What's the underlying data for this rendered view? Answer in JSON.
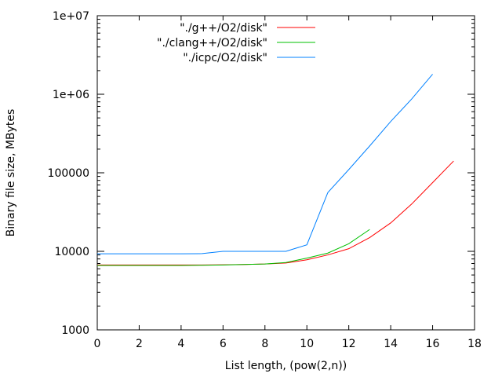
{
  "chart_data": {
    "type": "line",
    "title": "",
    "xlabel": "List length, (pow(2,n))",
    "ylabel": "Binary file size, MBytes",
    "xlim": [
      0,
      18
    ],
    "ylim": [
      1000,
      10000000
    ],
    "yscale": "log",
    "xticks": [
      0,
      2,
      4,
      6,
      8,
      10,
      12,
      14,
      16,
      18
    ],
    "yticks": [
      1000,
      10000,
      100000,
      1000000,
      10000000
    ],
    "ytick_labels": [
      "1000",
      "10000",
      "100000",
      "1e+06",
      "1e+07"
    ],
    "legend_position": "top-center",
    "series": [
      {
        "name": "\"./g++/O2/disk\"",
        "color": "#ff0000",
        "x": [
          0,
          1,
          2,
          3,
          4,
          5,
          6,
          7,
          8,
          9,
          10,
          11,
          12,
          13,
          14,
          15,
          16,
          17
        ],
        "y": [
          6700,
          6700,
          6700,
          6700,
          6700,
          6700,
          6750,
          6800,
          6900,
          7100,
          7800,
          9000,
          10800,
          15000,
          23000,
          40000,
          75000,
          141000
        ]
      },
      {
        "name": "\"./clang++/O2/disk\"",
        "color": "#00c000",
        "x": [
          0,
          1,
          2,
          3,
          4,
          5,
          6,
          7,
          8,
          9,
          10,
          11,
          12,
          13
        ],
        "y": [
          6600,
          6600,
          6600,
          6600,
          6600,
          6650,
          6700,
          6800,
          6900,
          7200,
          8200,
          9500,
          12500,
          19000
        ]
      },
      {
        "name": "\"./icpc/O2/disk\"",
        "color": "#0080ff",
        "x": [
          0,
          1,
          2,
          3,
          4,
          5,
          6,
          7,
          8,
          9,
          10,
          11,
          12,
          13,
          14,
          15,
          16
        ],
        "y": [
          9300,
          9300,
          9300,
          9300,
          9300,
          9350,
          10000,
          10000,
          10000,
          10000,
          12100,
          56000,
          110000,
          220000,
          450000,
          870000,
          1800000
        ]
      }
    ]
  }
}
